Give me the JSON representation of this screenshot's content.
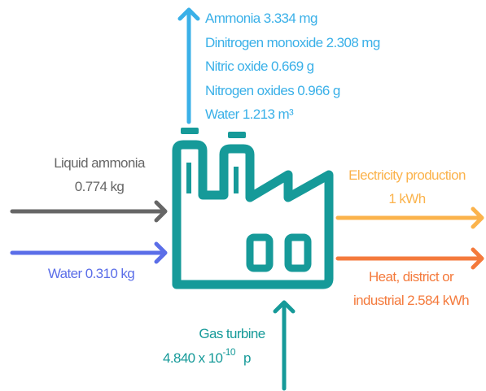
{
  "emissions": [
    "Ammonia 3.334 mg",
    "Dinitrogen monoxide 2.308 mg",
    "Nitric oxide 0.669 g",
    "Nitrogen oxides 0.966 g",
    "Water 1.213 m³"
  ],
  "inputs": [
    {
      "lines": [
        "Liquid ammonia",
        "0.774 kg"
      ]
    },
    {
      "lines": [
        "Water 0.310 kg"
      ]
    }
  ],
  "outputs": [
    {
      "lines": [
        "Electricity production",
        "1 kWh"
      ]
    },
    {
      "lines": [
        "Heat, district or",
        "industrial 2.584 kWh"
      ]
    }
  ],
  "supply": {
    "name": "Gas turbine",
    "amount_base": "4.840 x 10",
    "amount_exponent": "-10",
    "amount_unit": "p"
  }
}
